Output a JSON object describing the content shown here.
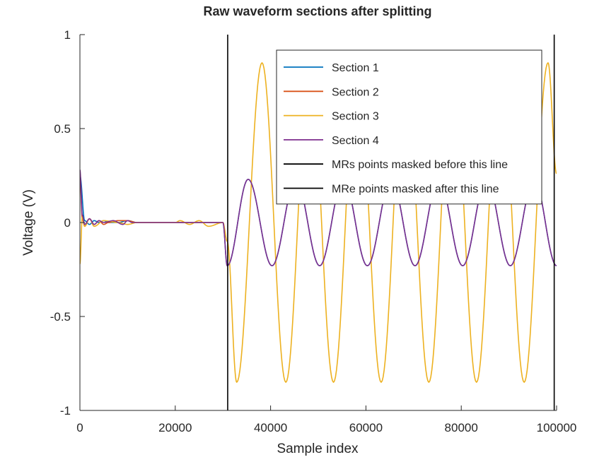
{
  "chart_data": {
    "type": "line",
    "title": "Raw waveform sections after splitting",
    "xlabel": "Sample index",
    "ylabel": "Voltage (V)",
    "xlim": [
      0,
      100000
    ],
    "ylim": [
      -1,
      1
    ],
    "xticks": [
      0,
      20000,
      40000,
      60000,
      80000,
      100000
    ],
    "xtick_labels": [
      "0",
      "20000",
      "40000",
      "60000",
      "80000",
      "100000"
    ],
    "yticks": [
      -1,
      -0.5,
      0,
      0.5,
      1
    ],
    "ytick_labels": [
      "-1",
      "-0.5",
      "0",
      "0.5",
      "1"
    ],
    "grid": false,
    "legend_position": "top-right",
    "series": [
      {
        "name": "Section 1",
        "color": "#0072BD",
        "x": [
          0,
          1000,
          2000,
          3000,
          4000,
          5000,
          6000,
          8000,
          10000,
          12000,
          20000,
          30000,
          30900,
          35300,
          40300,
          45300,
          50300,
          55300,
          60300,
          65300,
          70300,
          75300,
          80300,
          85300,
          90300,
          95300,
          100000
        ],
        "y": [
          0.25,
          0.01,
          -0.01,
          0.01,
          0.0,
          0.01,
          0.0,
          0.0,
          0.01,
          0.0,
          0.0,
          0.0,
          -0.23,
          0.23,
          -0.23,
          0.23,
          -0.23,
          0.23,
          -0.23,
          0.23,
          -0.23,
          0.23,
          -0.23,
          0.23,
          -0.23,
          0.23,
          -0.23
        ]
      },
      {
        "name": "Section 2",
        "color": "#D95319",
        "x": [
          0,
          500,
          1000,
          2000,
          3000,
          4000,
          5000,
          6000,
          8000,
          10000,
          12000,
          20000,
          30000
        ],
        "y": [
          0.26,
          0.02,
          -0.02,
          0.02,
          -0.01,
          0.01,
          -0.01,
          0.0,
          0.01,
          0.01,
          0.0,
          0.0,
          0.0
        ]
      },
      {
        "name": "Section 3",
        "color": "#EDB120",
        "x": [
          0,
          500,
          1000,
          2000,
          3000,
          5000,
          8000,
          10000,
          12000,
          20000,
          21000,
          23000,
          25000,
          27000,
          30000,
          30900,
          32900,
          38200,
          43200,
          48200,
          53200,
          58200,
          63200,
          68200,
          73200,
          78200,
          83200,
          88200,
          93200,
          98200,
          100000
        ],
        "y": [
          -0.22,
          0.03,
          -0.02,
          0.02,
          -0.02,
          0.01,
          0.0,
          -0.01,
          0.0,
          0.0,
          0.01,
          -0.01,
          0.01,
          -0.02,
          0.0,
          -0.1,
          -0.85,
          0.85,
          -0.85,
          0.85,
          -0.85,
          0.85,
          -0.85,
          0.85,
          -0.85,
          0.85,
          -0.85,
          0.85,
          -0.85,
          0.85,
          0.26
        ]
      },
      {
        "name": "Section 4",
        "color": "#7E2F8E",
        "x": [
          0,
          500,
          1000,
          2000,
          3000,
          4000,
          5000,
          7000,
          9000,
          10000,
          11000,
          12000,
          20000,
          30000,
          30900,
          35300,
          40300,
          45300,
          50300,
          55300,
          60300,
          65300,
          70300,
          75300,
          80300,
          85300,
          90300,
          95300,
          100000
        ],
        "y": [
          0.28,
          0.04,
          -0.01,
          0.02,
          -0.01,
          0.01,
          0.0,
          0.01,
          -0.01,
          0.01,
          0.0,
          0.0,
          0.0,
          0.0,
          -0.23,
          0.23,
          -0.23,
          0.23,
          -0.23,
          0.23,
          -0.23,
          0.23,
          -0.23,
          0.23,
          -0.23,
          0.23,
          -0.23,
          0.23,
          -0.23
        ]
      }
    ],
    "vertical_lines": [
      {
        "name": "MRs points masked before this line",
        "x": 31000,
        "color": "#000000"
      },
      {
        "name": "MRe points masked after this line",
        "x": 99500,
        "color": "#000000"
      }
    ]
  }
}
